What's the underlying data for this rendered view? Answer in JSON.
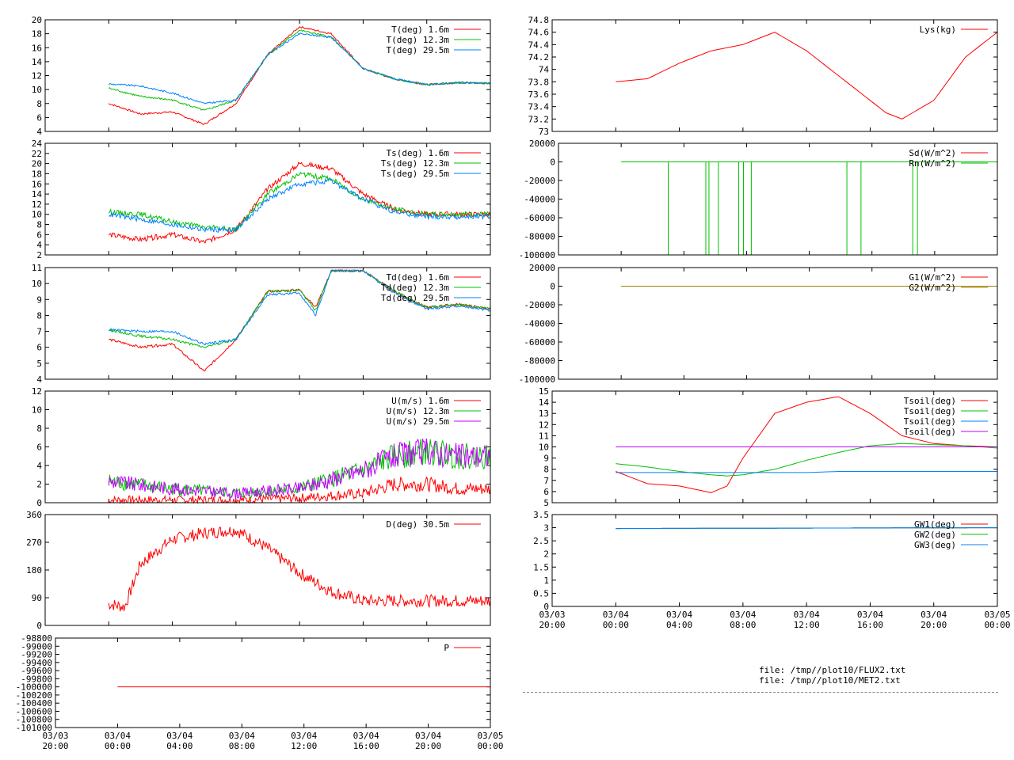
{
  "colors": {
    "red": "#ff0000",
    "green": "#00c000",
    "blue": "#0080ff",
    "purple": "#c000ff",
    "olive": "#a08000",
    "frame": "#000000"
  },
  "x_axis": {
    "left_ticks": [
      "03/03\n20:00",
      "03/04\n00:00",
      "03/04\n04:00",
      "03/04\n08:00",
      "03/04\n12:00",
      "03/04\n16:00",
      "03/04\n20:00",
      "03/05\n00:00"
    ],
    "right_ticks": [
      "03/03\n20:00",
      "03/04\n00:00",
      "03/04\n04:00",
      "03/04\n08:00",
      "03/04\n12:00",
      "03/04\n16:00",
      "03/04\n20:00",
      "03/05\n00:00"
    ]
  },
  "files": [
    "file: /tmp//plot10/FLUX2.txt",
    "file: /tmp//plot10/MET2.txt"
  ],
  "chart_data": [
    {
      "id": "T",
      "type": "line",
      "ylim": [
        4,
        20
      ],
      "yticks": [
        "4",
        "6",
        "8",
        "10",
        "12",
        "14",
        "16",
        "18",
        "20"
      ],
      "series": [
        {
          "name": "T(deg)  1.6m",
          "color": "red"
        },
        {
          "name": "T(deg) 12.3m",
          "color": "green"
        },
        {
          "name": "T(deg) 29.5m",
          "color": "blue"
        }
      ],
      "x_hours": [
        4,
        6,
        8,
        10,
        12,
        14,
        16,
        18,
        20,
        22,
        24,
        26,
        28
      ],
      "values": [
        [
          8,
          6.5,
          6.8,
          5,
          8,
          15,
          19,
          18,
          13,
          11.5,
          10.7,
          11,
          10.9
        ],
        [
          10.2,
          9,
          8.5,
          7,
          8.5,
          15,
          18.5,
          17.5,
          13,
          11.5,
          10.7,
          11,
          10.9
        ],
        [
          10.8,
          10.5,
          9.5,
          8,
          8.5,
          15,
          18,
          17.5,
          13,
          11.5,
          10.7,
          11,
          10.9
        ]
      ]
    },
    {
      "id": "Ts",
      "type": "line",
      "ylim": [
        2,
        24
      ],
      "yticks": [
        "2",
        "4",
        "6",
        "8",
        "10",
        "12",
        "14",
        "16",
        "18",
        "20",
        "22",
        "24"
      ],
      "series": [
        {
          "name": "Ts(deg)  1.6m",
          "color": "red"
        },
        {
          "name": "Ts(deg) 12.3m",
          "color": "green"
        },
        {
          "name": "Ts(deg) 29.5m",
          "color": "blue"
        }
      ],
      "x_hours": [
        4,
        6,
        8,
        10,
        12,
        14,
        16,
        18,
        20,
        22,
        24,
        26,
        28
      ],
      "values": [
        [
          6,
          5,
          6,
          4.5,
          7,
          15,
          20,
          19,
          14,
          11,
          10,
          10,
          10
        ],
        [
          10.5,
          10,
          8.5,
          7.5,
          7,
          14,
          18,
          17,
          13,
          11,
          10,
          10,
          10
        ],
        [
          10,
          9,
          8,
          7,
          7,
          13,
          16,
          16.5,
          13,
          10.5,
          9.5,
          9.5,
          9.5
        ]
      ]
    },
    {
      "id": "Td",
      "type": "line",
      "ylim": [
        4,
        11
      ],
      "yticks": [
        "4",
        "5",
        "6",
        "7",
        "8",
        "9",
        "10",
        "11"
      ],
      "series": [
        {
          "name": "Td(deg)  1.6m",
          "color": "red"
        },
        {
          "name": "Td(deg) 12.3m",
          "color": "green"
        },
        {
          "name": "Td(deg) 29.5m",
          "color": "blue"
        }
      ],
      "x_hours": [
        4,
        6,
        8,
        10,
        12,
        14,
        16,
        17,
        18,
        20,
        22,
        24,
        26,
        28
      ],
      "values": [
        [
          6.5,
          6,
          6.2,
          4.5,
          6.5,
          9.5,
          9.6,
          8.5,
          10.8,
          10.8,
          9.5,
          8.5,
          8.7,
          8.4
        ],
        [
          7.1,
          6.7,
          6.5,
          6,
          6.5,
          9.5,
          9.6,
          8.3,
          10.8,
          10.8,
          9.5,
          8.5,
          8.7,
          8.4
        ],
        [
          7.1,
          7,
          7,
          6.2,
          6.5,
          9.3,
          9.4,
          8,
          10.8,
          10.8,
          9.4,
          8.4,
          8.6,
          8.3
        ]
      ]
    },
    {
      "id": "U",
      "type": "line",
      "ylim": [
        0,
        12
      ],
      "yticks": [
        "0",
        "2",
        "4",
        "6",
        "8",
        "10",
        "12"
      ],
      "series": [
        {
          "name": "U(m/s)  1.6m",
          "color": "red"
        },
        {
          "name": "U(m/s) 12.3m",
          "color": "green"
        },
        {
          "name": "U(m/s) 29.5m",
          "color": "purple"
        }
      ],
      "x_hours": [
        4,
        8,
        12,
        16,
        20,
        22,
        24,
        26,
        28
      ],
      "values": [
        [
          0.3,
          0.3,
          0.3,
          0.5,
          1,
          2,
          2,
          1.5,
          1.5
        ],
        [
          2.3,
          1.5,
          1,
          1.5,
          3.5,
          5,
          5.5,
          5,
          5
        ],
        [
          2.3,
          1.5,
          1,
          1.5,
          3.5,
          5,
          5.5,
          5,
          5
        ]
      ]
    },
    {
      "id": "D",
      "type": "line",
      "ylim": [
        0,
        360
      ],
      "yticks": [
        "0",
        "90",
        "180",
        "270",
        "360"
      ],
      "series": [
        {
          "name": "D(deg)  30.5m",
          "color": "red"
        }
      ],
      "x_hours": [
        4,
        5,
        6,
        8,
        10,
        12,
        14,
        16,
        18,
        20,
        24,
        28
      ],
      "values": [
        [
          70,
          60,
          200,
          280,
          300,
          310,
          250,
          170,
          110,
          80,
          80,
          80
        ]
      ]
    },
    {
      "id": "P",
      "type": "line",
      "ylim": [
        -101000,
        -98800
      ],
      "yticks": [
        "-101000",
        "-100800",
        "-100600",
        "-100400",
        "-100200",
        "-100000",
        "-99800",
        "-99600",
        "-99400",
        "-99200",
        "-99000",
        "-98800"
      ],
      "series": [
        {
          "name": "P",
          "color": "red"
        }
      ],
      "x_hours": [
        4,
        28
      ],
      "values": [
        [
          -100000,
          -100000
        ]
      ]
    },
    {
      "id": "Lys",
      "type": "line",
      "ylim": [
        73,
        74.8
      ],
      "yticks": [
        "73",
        "73.2",
        "73.4",
        "73.6",
        "73.8",
        "74",
        "74.2",
        "74.4",
        "74.6",
        "74.8"
      ],
      "series": [
        {
          "name": "Lys(kg)",
          "color": "red"
        }
      ],
      "x_hours": [
        4,
        6,
        8,
        10,
        12,
        14,
        16,
        18,
        20,
        21,
        22,
        24,
        26,
        28
      ],
      "values": [
        [
          73.8,
          73.85,
          74.1,
          74.3,
          74.4,
          74.6,
          74.3,
          73.9,
          73.5,
          73.3,
          73.2,
          73.5,
          74.2,
          74.6
        ]
      ]
    },
    {
      "id": "Rad",
      "type": "line",
      "ylim": [
        -100000,
        20000
      ],
      "yticks": [
        "-100000",
        "-80000",
        "-60000",
        "-40000",
        "-20000",
        "0",
        "20000"
      ],
      "series": [
        {
          "name": "Sd(W/m^2)",
          "color": "red"
        },
        {
          "name": "Rn(W/m^2)",
          "color": "green"
        }
      ],
      "x_hours": [
        4,
        28
      ],
      "values": [
        [
          0,
          0
        ],
        [
          0,
          0
        ]
      ]
    },
    {
      "id": "G",
      "type": "line",
      "ylim": [
        -100000,
        20000
      ],
      "yticks": [
        "-100000",
        "-80000",
        "-60000",
        "-40000",
        "-20000",
        "0",
        "20000"
      ],
      "series": [
        {
          "name": "G1(W/m^2)",
          "color": "red"
        },
        {
          "name": "G2(W/m^2)",
          "color": "olive"
        }
      ],
      "x_hours": [
        4,
        28
      ],
      "values": [
        [
          0,
          0
        ],
        [
          0,
          0
        ]
      ]
    },
    {
      "id": "Tsoil",
      "type": "line",
      "ylim": [
        5,
        15
      ],
      "yticks": [
        "5",
        "6",
        "7",
        "8",
        "9",
        "10",
        "11",
        "12",
        "13",
        "14",
        "15"
      ],
      "series": [
        {
          "name": "Tsoil(deg)",
          "color": "red"
        },
        {
          "name": "Tsoil(deg)",
          "color": "green"
        },
        {
          "name": "Tsoil(deg)",
          "color": "blue"
        },
        {
          "name": "Tsoil(deg)",
          "color": "purple"
        }
      ],
      "x_hours": [
        4,
        6,
        8,
        10,
        11,
        12,
        14,
        16,
        18,
        20,
        22,
        24,
        26,
        28
      ],
      "values": [
        [
          7.8,
          6.7,
          6.5,
          5.9,
          6.5,
          9,
          13,
          14,
          14.5,
          13,
          11,
          10.3,
          10.1,
          10
        ],
        [
          8.5,
          8.2,
          7.8,
          7.5,
          7.4,
          7.5,
          8,
          8.8,
          9.5,
          10.1,
          10.3,
          10.2,
          10.1,
          9.9
        ],
        [
          7.7,
          7.7,
          7.7,
          7.7,
          7.7,
          7.7,
          7.7,
          7.7,
          7.8,
          7.8,
          7.8,
          7.8,
          7.8,
          7.8
        ],
        [
          10,
          10,
          10,
          10,
          10,
          10,
          10,
          10,
          10,
          10,
          10,
          10,
          10,
          10
        ]
      ]
    },
    {
      "id": "GW",
      "type": "line",
      "ylim": [
        0,
        3.5
      ],
      "yticks": [
        "0",
        "0.5",
        "1",
        "1.5",
        "2",
        "2.5",
        "3",
        "3.5"
      ],
      "series": [
        {
          "name": "GW1(deg)",
          "color": "red"
        },
        {
          "name": "GW2(deg)",
          "color": "green"
        },
        {
          "name": "GW3(deg)",
          "color": "blue"
        }
      ],
      "x_hours": [
        4,
        28
      ],
      "values": [
        [
          2.97,
          3.0
        ],
        [
          2.97,
          3.0
        ],
        [
          2.97,
          3.0
        ]
      ]
    }
  ]
}
